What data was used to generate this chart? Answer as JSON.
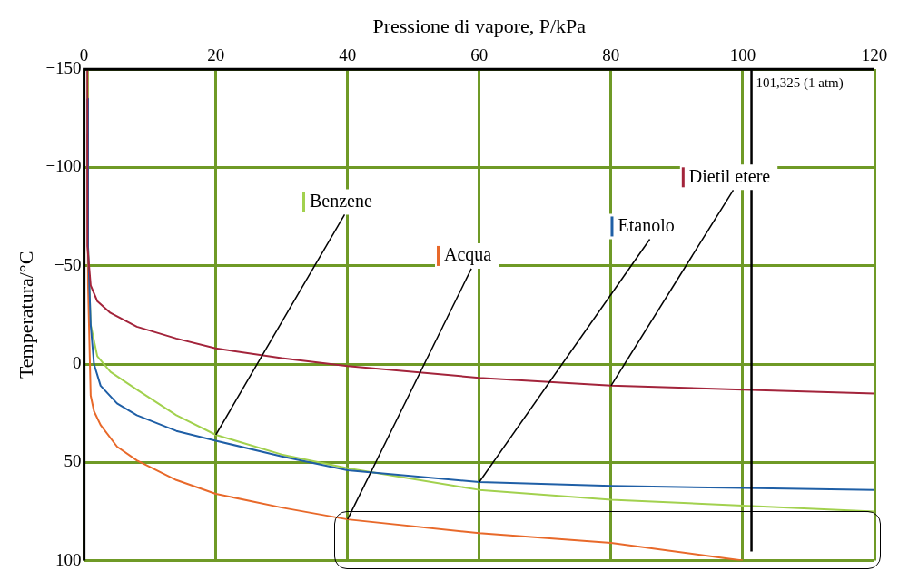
{
  "chart_data": {
    "type": "line",
    "xlabel": "Pressione di vapore, P/kPa",
    "ylabel": "Temperatura/°C",
    "xlim": [
      0,
      120
    ],
    "xticks": [
      0,
      20,
      40,
      60,
      80,
      100,
      120
    ],
    "ylim": [
      100,
      -150
    ],
    "yticks": [
      {
        "value": -150,
        "label": "−150"
      },
      {
        "value": -100,
        "label": "−100"
      },
      {
        "value": -50,
        "label": "−50"
      },
      0,
      50,
      100
    ],
    "grid": true,
    "legend": "top",
    "marker": "none",
    "line_style": "solid",
    "series": [
      {
        "name": "Dietil etere",
        "color": "#a3243b",
        "x": [
          0.5,
          0.5,
          1,
          2,
          4,
          8,
          14,
          20,
          30,
          40,
          60,
          80,
          100,
          120
        ],
        "values": [
          -150,
          -60,
          -40,
          -32,
          -26,
          -19,
          -13,
          -8,
          -3,
          1,
          7,
          11,
          13,
          15
        ]
      },
      {
        "name": "Etanolo",
        "color": "#1f5fa6",
        "x": [
          0.5,
          0.6,
          1,
          1.5,
          2.5,
          5,
          8,
          14,
          20,
          30,
          40,
          60,
          80,
          100,
          120
        ],
        "values": [
          -135,
          -60,
          -20,
          0,
          11,
          20,
          26,
          34,
          39,
          47,
          54,
          60,
          62,
          63,
          64
        ]
      },
      {
        "name": "Acqua",
        "color": "#e8692a",
        "x": [
          0.5,
          0.6,
          1,
          1.5,
          2.5,
          5,
          8,
          14,
          20,
          30,
          40,
          60,
          80,
          100
        ],
        "values": [
          -117,
          -40,
          16,
          24,
          31,
          42,
          49,
          59,
          66,
          73,
          79,
          86,
          91,
          100
        ]
      },
      {
        "name": "Benzene",
        "color": "#a2d14e",
        "x": [
          0.5,
          0.6,
          1,
          2,
          4,
          8,
          14,
          20,
          30,
          40,
          60,
          80,
          100,
          120
        ],
        "values": [
          -150,
          -60,
          -20,
          -4,
          4,
          13,
          26,
          36,
          46,
          53,
          64,
          69,
          72,
          75
        ]
      }
    ],
    "ref_lines": [
      {
        "axis": "x",
        "value": 101.325,
        "label": "101,325 (1 atm)",
        "color": "#000000"
      }
    ]
  }
}
